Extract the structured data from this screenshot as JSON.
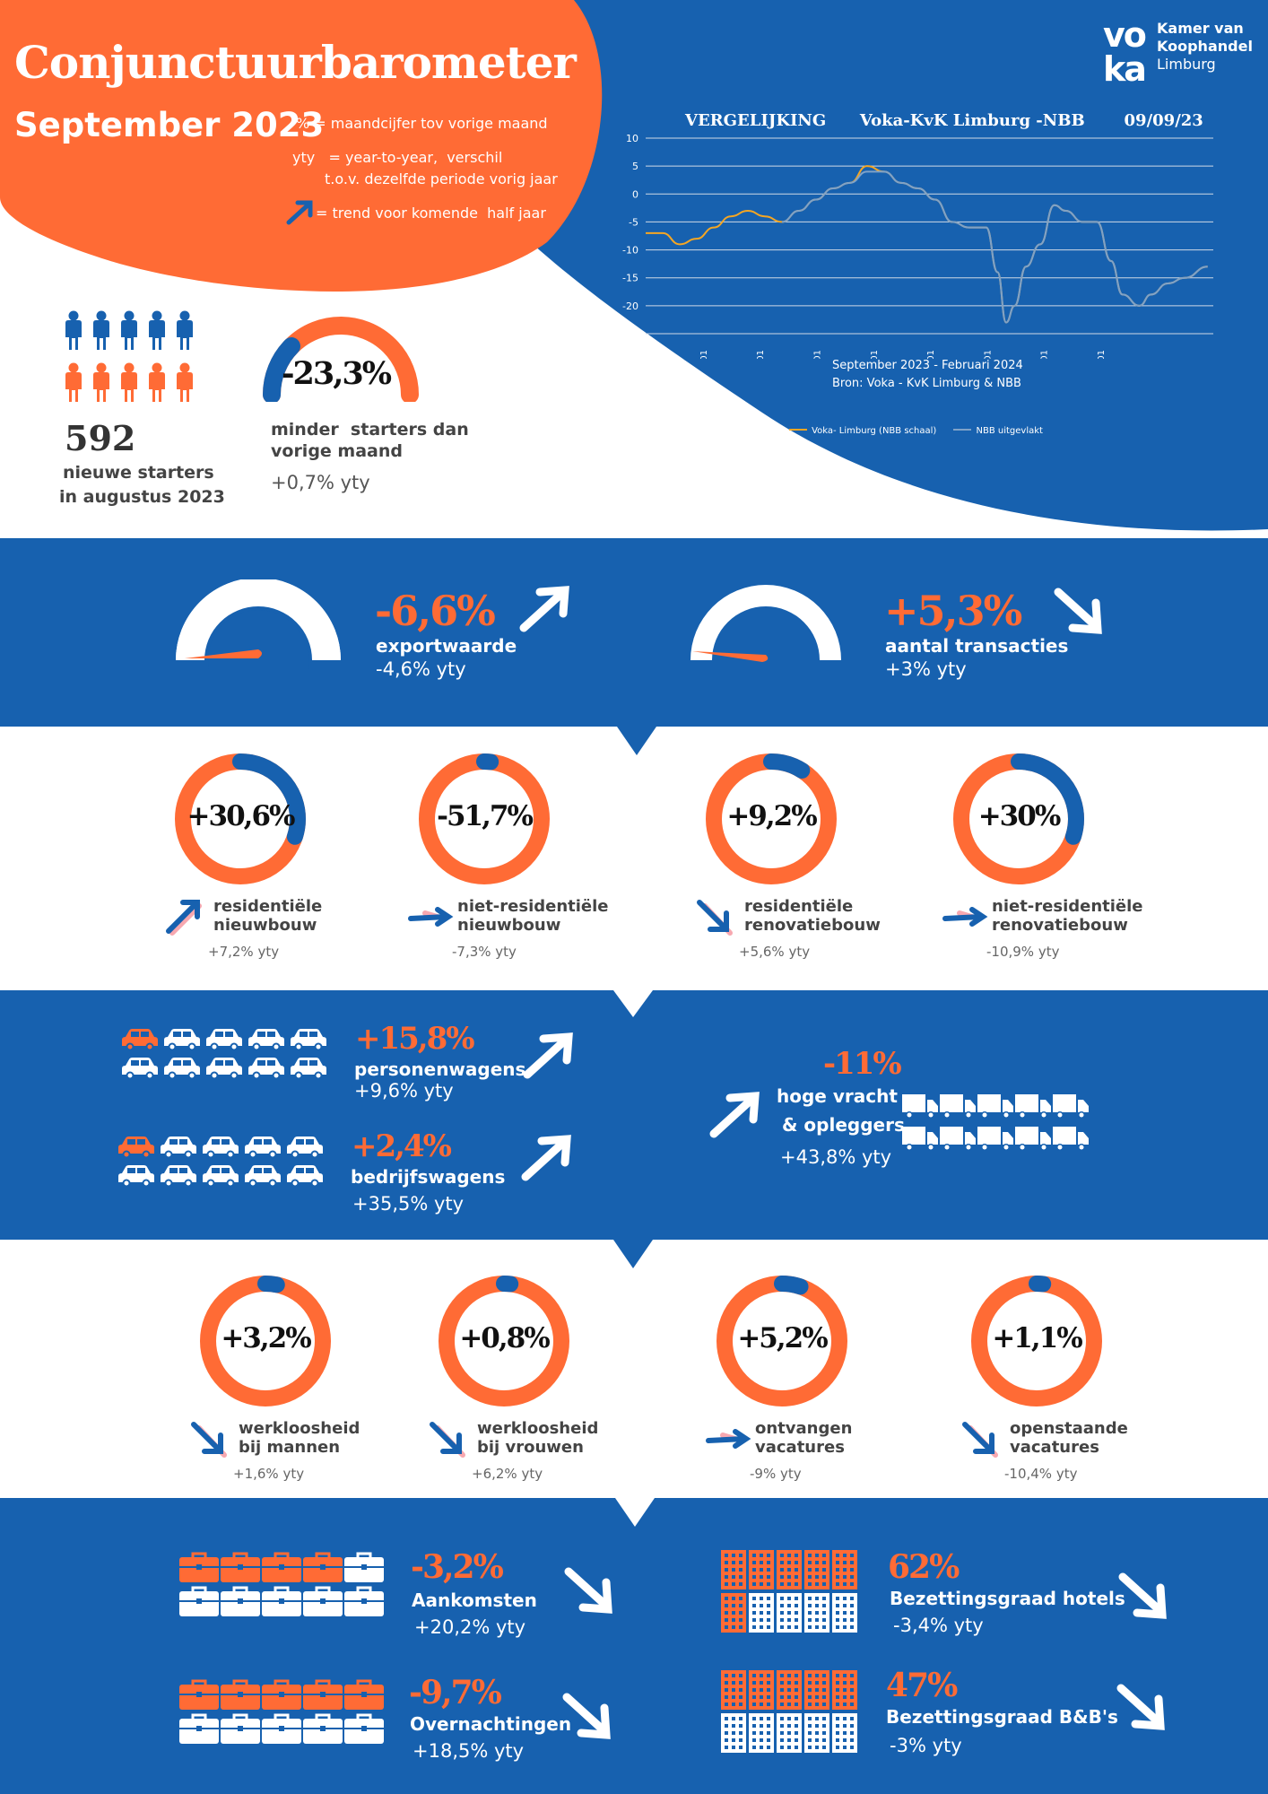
{
  "header": {
    "title": "Conjunctuurbarometer",
    "subtitle": "September 2023",
    "legend_pct": "% = maandcijfer tov vorige maand",
    "legend_yty_1": "yty   = year-to-year,  verschil",
    "legend_yty_2": "t.o.v. dezelfde periode vorig jaar",
    "legend_trend": "= trend voor komende  half jaar"
  },
  "logo": {
    "mark": "vo ka",
    "line1": "Kamer van",
    "line2": "Koophandel",
    "line3": "Limburg"
  },
  "starters": {
    "count": "592",
    "count_label_1": "nieuwe starters",
    "count_label_2": "in augustus 2023",
    "change": "-23,3%",
    "change_label_1": "minder  starters dan",
    "change_label_2": "vorige maand",
    "yty": "+0,7% yty"
  },
  "chart_data": {
    "type": "line",
    "title": "VERGELIJKING      Voka-KvK Limburg -NBB       09/09/23",
    "ylim": [
      -25,
      10
    ],
    "yticks": [
      "10",
      "5",
      "0",
      "-5",
      "-10",
      "-15",
      "-20",
      "-25"
    ],
    "xticks": [
      "2014.01",
      "2015.01",
      "2016.01",
      "2017.01",
      "2018.01",
      "2019.01",
      "2020.01",
      "2021.01",
      "2022.01"
    ],
    "note_1": "September 2023 - Februari 2024",
    "note_2": "Bron: Voka - KvK Limburg & NBB",
    "grid": true,
    "legend_position": "bottom",
    "series": [
      {
        "name": "Voka- Limburg (NBB schaal)",
        "color": "#f5a623",
        "x": [
          2014.0,
          2014.3,
          2014.6,
          2014.9,
          2015.2,
          2015.5,
          2015.8,
          2016.1,
          2016.4,
          2016.7,
          2017.0,
          2017.3,
          2017.6,
          2017.9,
          2018.2,
          2018.5,
          2018.8,
          2019.1,
          2019.4,
          2019.7,
          2020.0,
          2020.2,
          2020.35,
          2020.5,
          2020.7,
          2020.95,
          2021.2,
          2021.4,
          2021.7,
          2021.95,
          2022.2,
          2022.4,
          2022.7,
          2022.9,
          2023.2,
          2023.5,
          2023.9
        ],
        "y": [
          -7,
          -7,
          -9,
          -8,
          -6,
          -4,
          -3,
          -4,
          -5,
          -3,
          -1,
          1,
          2,
          5,
          4,
          2,
          1,
          -1,
          -5,
          -6,
          -6,
          -14,
          -23,
          -20,
          -13,
          -9,
          -2,
          -3,
          -5,
          -5,
          -12,
          -18,
          -20,
          -18,
          -16,
          -15,
          -13
        ]
      },
      {
        "name": "NBB  uitgevlakt",
        "color": "#7fa2c8",
        "x": [
          2016.4,
          2016.7,
          2017.0,
          2017.3,
          2017.6,
          2017.9,
          2018.2,
          2018.5,
          2018.8,
          2019.1,
          2019.4,
          2019.7,
          2020.0,
          2020.2,
          2020.35,
          2020.5,
          2020.7,
          2020.95,
          2021.2,
          2021.4,
          2021.7,
          2021.95,
          2022.2,
          2022.4,
          2022.7,
          2022.9,
          2023.2,
          2023.5,
          2023.9
        ],
        "y": [
          -5,
          -3,
          -1,
          1,
          2,
          4,
          4,
          2,
          1,
          -1,
          -5,
          -6,
          -6,
          -14,
          -23,
          -20,
          -13,
          -9,
          -2,
          -3,
          -5,
          -5,
          -12,
          -18,
          -20,
          -18,
          -16,
          -15,
          -13
        ]
      }
    ]
  },
  "band1": {
    "export": {
      "pct": "-6,6%",
      "label": "exportwaarde",
      "yty": "-4,6% yty",
      "trend": "up"
    },
    "transactions": {
      "pct": "+5,3%",
      "label": "aantal transacties",
      "yty": "+3% yty",
      "trend": "down"
    }
  },
  "construction": [
    {
      "value": "+30,6%",
      "label1": "residentiële",
      "label2": "nieuwbouw",
      "yty": "+7,2% yty",
      "fraction": 0.3,
      "trend": "up"
    },
    {
      "value": "-51,7%",
      "label1": "niet-residentiële",
      "label2": "nieuwbouw",
      "yty": "-7,3% yty",
      "fraction": 0.0,
      "trend": "flat"
    },
    {
      "value": "+9,2%",
      "label1": "residentiële",
      "label2": "renovatiebouw",
      "yty": "+5,6% yty",
      "fraction": 0.09,
      "trend": "down"
    },
    {
      "value": "+30%",
      "label1": "niet-residentiële",
      "label2": "renovatiebouw",
      "yty": "-10,9% yty",
      "fraction": 0.3,
      "trend": "flat"
    }
  ],
  "vehicles": {
    "cars": {
      "pct": "+15,8%",
      "label": "personenwagens",
      "yty": "+9,6% yty",
      "trend": "up"
    },
    "vans": {
      "pct": "+2,4%",
      "label": "bedrijfswagens",
      "yty": "+35,5% yty",
      "trend": "up"
    },
    "trucks": {
      "pct": "-11%",
      "label1": "hoge vracht",
      "label2": "& opleggers",
      "yty": "+43,8% yty",
      "trend": "up"
    }
  },
  "labour": [
    {
      "value": "+3,2%",
      "label1": "werkloosheid",
      "label2": "bij mannen",
      "yty": "+1,6% yty",
      "fraction": 0.032,
      "trend": "down"
    },
    {
      "value": "+0,8%",
      "label1": "werkloosheid",
      "label2": "bij vrouwen",
      "yty": "+6,2% yty",
      "fraction": 0.008,
      "trend": "down"
    },
    {
      "value": "+5,2%",
      "label1": "ontvangen",
      "label2": "vacatures",
      "yty": "-9% yty",
      "fraction": 0.052,
      "trend": "flat"
    },
    {
      "value": "+1,1%",
      "label1": "openstaande",
      "label2": "vacatures",
      "yty": "-10,4% yty",
      "fraction": 0.011,
      "trend": "down"
    }
  ],
  "tourism": {
    "arrivals": {
      "pct": "-3,2%",
      "label": "Aankomsten",
      "yty": "+20,2% yty",
      "trend": "down"
    },
    "nights": {
      "pct": "-9,7%",
      "label": "Overnachtingen",
      "yty": "+18,5% yty",
      "trend": "down"
    },
    "hotels": {
      "pct": "62%",
      "label": "Bezettingsgraad hotels",
      "yty": "-3,4% yty",
      "trend": "down"
    },
    "bnb": {
      "pct": "47%",
      "label": "Bezettingsgraad B&B's",
      "yty": "-3% yty",
      "trend": "down"
    }
  },
  "colors": {
    "blue": "#1761af",
    "orange": "#ff6b35",
    "pink": "#f7a8b0"
  }
}
